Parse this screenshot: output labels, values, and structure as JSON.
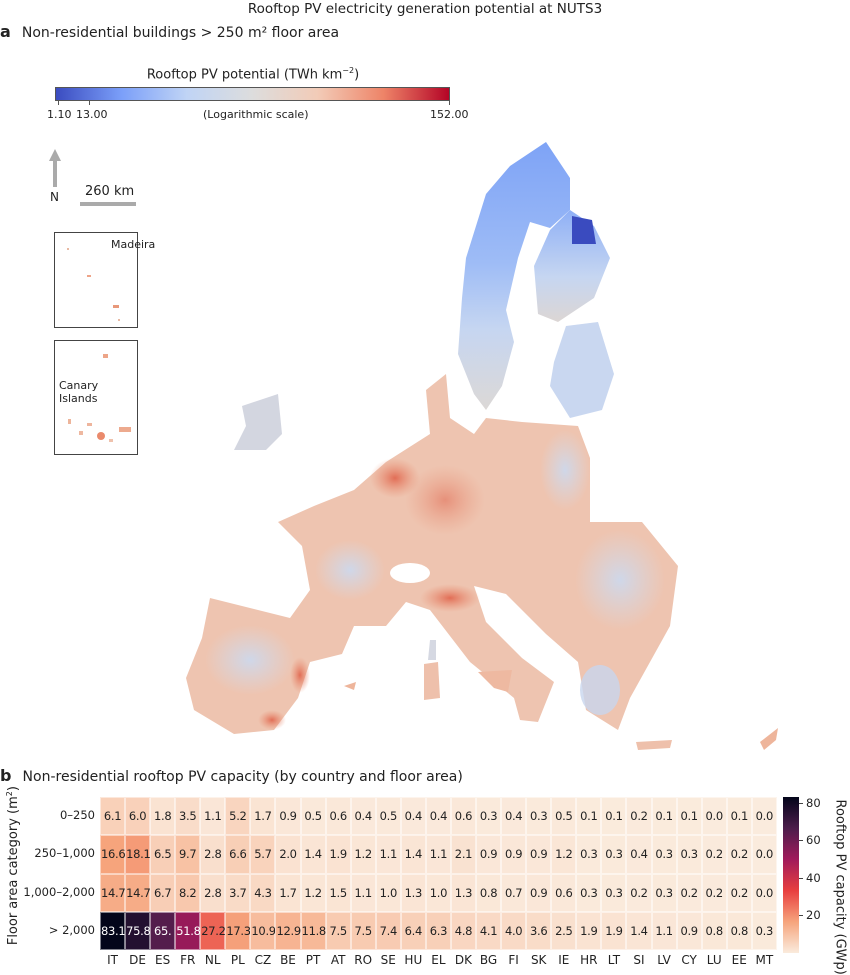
{
  "figure": {
    "title": "Rooftop PV electricity generation potential at NUTS3"
  },
  "panel_a": {
    "letter": "a",
    "title": "Non-residential buildings > 250 m² floor area",
    "colorbar": {
      "title": "Rooftop PV potential (TWh km",
      "title_exp": "−2",
      "title_close": ")",
      "min_label": "1.10",
      "tick2_label": "13.00",
      "max_label": "152.00",
      "scale_note": "(Logarithmic scale)",
      "scale": "log",
      "colors": [
        "#3b4cc0",
        "#7b9ff9",
        "#c0d4f5",
        "#dddddd",
        "#f2cbb7",
        "#ee8468",
        "#b40426"
      ]
    },
    "north_label": "N",
    "scale_bar_label": "260 km",
    "insets": [
      {
        "label": "Madeira"
      },
      {
        "label": "Canary Islands"
      }
    ]
  },
  "panel_b": {
    "letter": "b",
    "title": "Non-residential rooftop PV capacity (by country and floor area)"
  },
  "chart_data": {
    "type": "heatmap",
    "title": "Non-residential rooftop PV capacity (by country and floor area)",
    "ylabel": "Floor area category (m",
    "ylabel_exp": "2",
    "ylabel_close": ")",
    "xlabel": "",
    "categories": [
      "IT",
      "DE",
      "ES",
      "FR",
      "NL",
      "PL",
      "CZ",
      "BE",
      "PT",
      "AT",
      "RO",
      "SE",
      "HU",
      "EL",
      "DK",
      "BG",
      "FI",
      "SK",
      "IE",
      "HR",
      "LT",
      "SI",
      "LV",
      "CY",
      "LU",
      "EE",
      "MT"
    ],
    "rows": [
      "0–250",
      "250–1,000",
      "1,000–2,000",
      "> 2,000"
    ],
    "values": [
      [
        6.1,
        6.0,
        1.8,
        3.5,
        1.1,
        5.2,
        1.7,
        0.9,
        0.5,
        0.6,
        0.4,
        0.5,
        0.4,
        0.4,
        0.6,
        0.3,
        0.4,
        0.3,
        0.5,
        0.1,
        0.1,
        0.2,
        0.1,
        0.1,
        0.0,
        0.1,
        0.0
      ],
      [
        16.6,
        18.1,
        6.5,
        9.7,
        2.8,
        6.6,
        5.7,
        2.0,
        1.4,
        1.9,
        1.2,
        1.1,
        1.4,
        1.1,
        2.1,
        0.9,
        0.9,
        0.9,
        1.2,
        0.3,
        0.3,
        0.4,
        0.3,
        0.3,
        0.2,
        0.2,
        0.0
      ],
      [
        14.7,
        14.7,
        6.7,
        8.2,
        2.8,
        3.7,
        4.3,
        1.7,
        1.2,
        1.5,
        1.1,
        1.0,
        1.3,
        1.0,
        1.3,
        0.8,
        0.7,
        0.9,
        0.6,
        0.3,
        0.3,
        0.2,
        0.3,
        0.2,
        0.2,
        0.2,
        0.0
      ],
      [
        83.1,
        75.8,
        65.0,
        51.8,
        27.2,
        17.3,
        10.9,
        12.9,
        11.8,
        7.5,
        7.5,
        7.4,
        6.4,
        6.3,
        4.8,
        4.1,
        4.0,
        3.6,
        2.5,
        1.9,
        1.9,
        1.4,
        1.1,
        0.9,
        0.8,
        0.8,
        0.3
      ]
    ],
    "value_labels_override": {
      "3-2": "65."
    },
    "colorbar": {
      "label": "Rooftop PV capacity (GWp)",
      "ticks": [
        20,
        40,
        60,
        80
      ],
      "range": [
        0,
        83.1
      ],
      "colormap": "rocket_r"
    }
  }
}
